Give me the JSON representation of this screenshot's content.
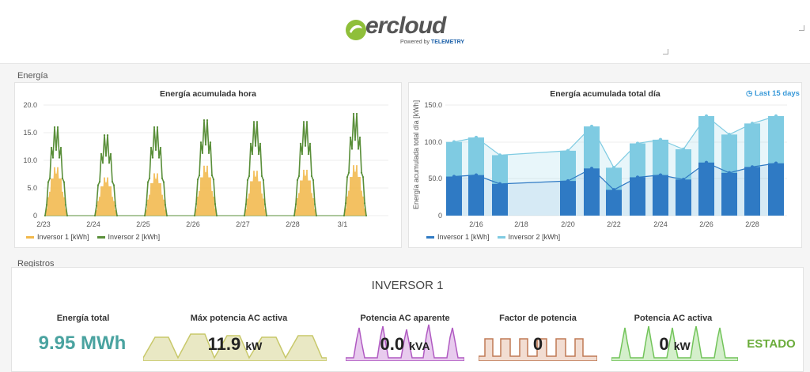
{
  "header": {
    "logo_text": "ercloud",
    "powered_by": "Powered by",
    "powered_brand": "TELEMETRY"
  },
  "sections": {
    "energia": "Energía",
    "registros": "Registros"
  },
  "chart_left": {
    "title": "Energía acumulada hora",
    "yticks": [
      "20.0",
      "15.0",
      "10.0",
      "5.0",
      "0"
    ],
    "xticks": [
      "2/23",
      "2/24",
      "2/25",
      "2/26",
      "2/27",
      "2/28",
      "3/1"
    ],
    "legend": [
      "Inversor 1 [kWh]",
      "Inversor 2 [kWh]"
    ]
  },
  "chart_right": {
    "title": "Energía acumulada total día",
    "ylabel": "Energía acumulada total día [kWh]",
    "link": "Last 15 days",
    "yticks": [
      "150.0",
      "100.0",
      "50.0",
      "0"
    ],
    "xticks": [
      "2/16",
      "2/18",
      "2/20",
      "2/22",
      "2/24",
      "2/26",
      "2/28"
    ],
    "legend": [
      "Inversor 1 [kWh]",
      "Inversor 2 [kWh]"
    ]
  },
  "chart_data": [
    {
      "type": "bar",
      "title": "Energía acumulada hora",
      "xlabel": "",
      "ylabel": "",
      "ylim": [
        0,
        20
      ],
      "categories": [
        "2/23",
        "2/24",
        "2/25",
        "2/26",
        "2/27",
        "2/28",
        "3/1"
      ],
      "series": [
        {
          "name": "Inversor 1 [kWh]",
          "color": "#f2b84b",
          "values": [
            9.5,
            7.5,
            8.3,
            9.8,
            8.8,
            9.0,
            9.9
          ]
        },
        {
          "name": "Inversor 2 [kWh]",
          "color": "#5a8f3a",
          "values": [
            16.5,
            15.0,
            16.5,
            17.8,
            17.5,
            17.5,
            19.0
          ]
        }
      ],
      "grid": true,
      "legend": "bottom-left"
    },
    {
      "type": "bar",
      "title": "Energía acumulada total día",
      "xlabel": "",
      "ylabel": "Energía acumulada total día [kWh]",
      "ylim": [
        0,
        150
      ],
      "categories": [
        "2/15",
        "2/16",
        "2/17",
        "2/20",
        "2/21",
        "2/22",
        "2/23",
        "2/24",
        "2/25",
        "2/26",
        "2/27",
        "2/28",
        "3/1"
      ],
      "series": [
        {
          "name": "Inversor 1 [kWh]",
          "color": "#2f7ac4",
          "values": [
            53,
            55,
            43,
            47,
            64,
            35,
            52,
            55,
            49,
            72,
            58,
            66,
            71
          ]
        },
        {
          "name": "Inversor 2 [kWh]",
          "color": "#7fcbe2",
          "values": [
            100,
            106,
            82,
            88,
            121,
            65,
            98,
            103,
            90,
            135,
            110,
            125,
            135
          ]
        }
      ],
      "grid": true,
      "legend": "bottom-left"
    }
  ],
  "inverter": {
    "title": "INVERSOR 1",
    "kpis": [
      {
        "label": "Energía total",
        "value": "9.95 MWh",
        "unit": ""
      },
      {
        "label": "Máx potencia AC activa",
        "value": "11.9",
        "unit": "kW"
      },
      {
        "label": "Potencia AC aparente",
        "value": "0.0",
        "unit": "kVA"
      },
      {
        "label": "Factor de potencia",
        "value": "0",
        "unit": ""
      },
      {
        "label": "Potencia AC activa",
        "value": "0",
        "unit": "kW"
      },
      {
        "label": "",
        "value": "ESTADO",
        "unit": ""
      }
    ]
  },
  "colors": {
    "teal": "#4aa3a0",
    "green": "#6bac3b",
    "olive": "#c8c86a",
    "purple": "#b05ac2",
    "brown": "#c07a55",
    "lightgreen": "#72c45a"
  }
}
